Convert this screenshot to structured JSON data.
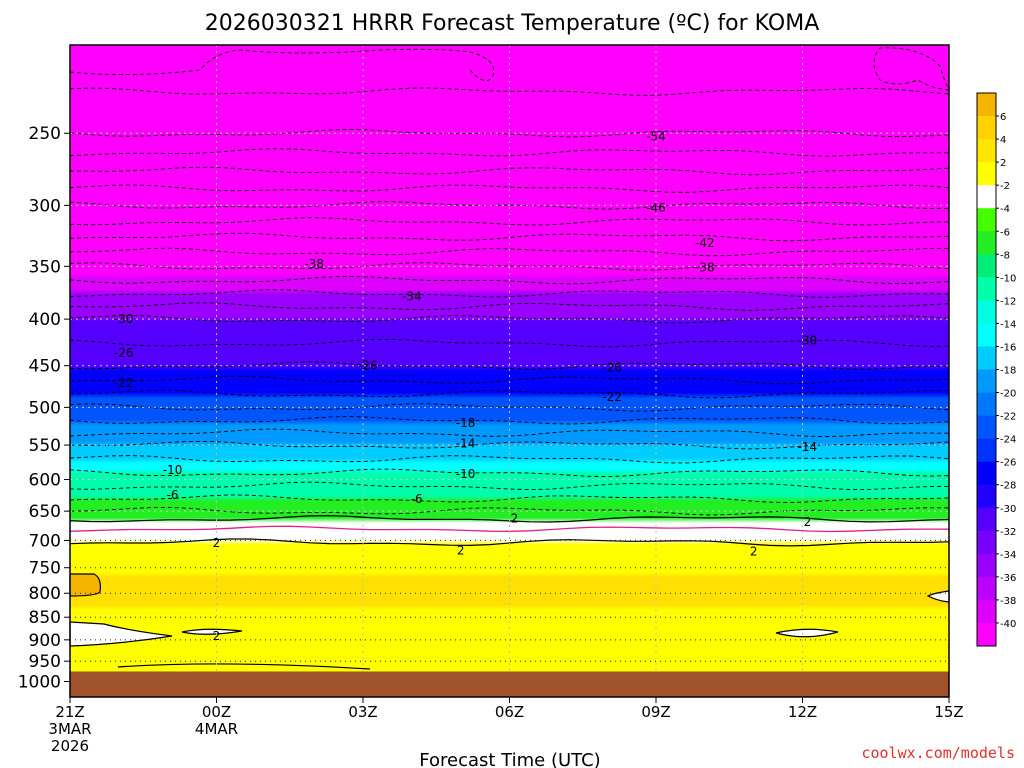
{
  "chart_data": {
    "type": "heatmap",
    "title": "2026030321 HRRR Forecast Temperature (ºC) for KOMA",
    "xlabel": "Forecast Time (UTC)",
    "credit": "coolwx.com/models",
    "x_ticks": [
      {
        "hour": 0,
        "lines": [
          "21Z",
          "3MAR",
          "2026"
        ]
      },
      {
        "hour": 3,
        "lines": [
          "00Z",
          "4MAR"
        ]
      },
      {
        "hour": 6,
        "lines": [
          "03Z"
        ]
      },
      {
        "hour": 9,
        "lines": [
          "06Z"
        ]
      },
      {
        "hour": 12,
        "lines": [
          "09Z"
        ]
      },
      {
        "hour": 15,
        "lines": [
          "12Z"
        ]
      },
      {
        "hour": 18,
        "lines": [
          "15Z"
        ]
      }
    ],
    "xlim": [
      0,
      18
    ],
    "y_ticks": [
      250,
      300,
      350,
      400,
      450,
      500,
      550,
      600,
      650,
      700,
      750,
      800,
      850,
      900,
      950,
      1000
    ],
    "ylim": [
      200,
      1040
    ],
    "y_scale": "log",
    "surface_pressure": 975,
    "temperature_profile": [
      {
        "p": 200,
        "t": -58
      },
      {
        "p": 250,
        "t": -54
      },
      {
        "p": 300,
        "t": -46
      },
      {
        "p": 350,
        "t": -38
      },
      {
        "p": 400,
        "t": -30
      },
      {
        "p": 450,
        "t": -26
      },
      {
        "p": 500,
        "t": -20
      },
      {
        "p": 550,
        "t": -14
      },
      {
        "p": 600,
        "t": -9
      },
      {
        "p": 650,
        "t": -4
      },
      {
        "p": 680,
        "t": 0
      },
      {
        "p": 700,
        "t": 2
      },
      {
        "p": 750,
        "t": 3.6
      },
      {
        "p": 800,
        "t": 4.4
      },
      {
        "p": 850,
        "t": 3.4
      },
      {
        "p": 900,
        "t": 2.3
      },
      {
        "p": 950,
        "t": 2.8
      },
      {
        "p": 975,
        "t": 2.6
      }
    ],
    "contour_labels": [
      {
        "text": "-54",
        "hour": 12.0,
        "p": 252
      },
      {
        "text": "-46",
        "hour": 12.0,
        "p": 302
      },
      {
        "text": "-42",
        "hour": 13.0,
        "p": 330
      },
      {
        "text": "-38",
        "hour": 5.0,
        "p": 348
      },
      {
        "text": "-38",
        "hour": 13.0,
        "p": 351
      },
      {
        "text": "-34",
        "hour": 7.0,
        "p": 378
      },
      {
        "text": "-30",
        "hour": 1.1,
        "p": 400
      },
      {
        "text": "-30",
        "hour": 15.1,
        "p": 422
      },
      {
        "text": "-26",
        "hour": 1.1,
        "p": 436
      },
      {
        "text": "-26",
        "hour": 6.1,
        "p": 450
      },
      {
        "text": "-26",
        "hour": 11.1,
        "p": 452
      },
      {
        "text": "-22",
        "hour": 1.1,
        "p": 470
      },
      {
        "text": "-22",
        "hour": 11.1,
        "p": 487
      },
      {
        "text": "-18",
        "hour": 8.1,
        "p": 520
      },
      {
        "text": "-14",
        "hour": 8.1,
        "p": 548
      },
      {
        "text": "-14",
        "hour": 15.1,
        "p": 553
      },
      {
        "text": "-10",
        "hour": 2.1,
        "p": 586
      },
      {
        "text": "-10",
        "hour": 8.1,
        "p": 592
      },
      {
        "text": "-6",
        "hour": 2.1,
        "p": 624
      },
      {
        "text": "-6",
        "hour": 7.1,
        "p": 630
      },
      {
        "text": "2",
        "hour": 9.1,
        "p": 662
      },
      {
        "text": "2",
        "hour": 15.1,
        "p": 668
      },
      {
        "text": "2",
        "hour": 3.0,
        "p": 705
      },
      {
        "text": "2",
        "hour": 8.0,
        "p": 718
      },
      {
        "text": "2",
        "hour": 14.0,
        "p": 720
      },
      {
        "text": "2",
        "hour": 3.0,
        "p": 891
      }
    ],
    "colorbar": {
      "levels": [
        "6",
        "4",
        "2",
        "-2",
        "-4",
        "-6",
        "-8",
        "-10",
        "-12",
        "-14",
        "-16",
        "-18",
        "-20",
        "-22",
        "-24",
        "-26",
        "-28",
        "-30",
        "-32",
        "-34",
        "-36",
        "-38",
        "-40"
      ],
      "colors": [
        "#f5b400",
        "#ffd200",
        "#ffe600",
        "#ffff00",
        "#ffffff",
        "#44ff00",
        "#22ee22",
        "#00ee77",
        "#00ffaa",
        "#00ffe0",
        "#00ffff",
        "#00ccff",
        "#0099ff",
        "#0077ff",
        "#0055ff",
        "#0033ff",
        "#0000ff",
        "#2200ff",
        "#5500ff",
        "#7700ff",
        "#9900ff",
        "#bb00ff",
        "#dd00ff",
        "#ff00ff"
      ]
    },
    "fill_stops": [
      {
        "t": -56,
        "c": "#ff00ff"
      },
      {
        "t": -40,
        "c": "#ff00ff"
      },
      {
        "t": -37,
        "c": "#dd00ff"
      },
      {
        "t": -34,
        "c": "#9900ff"
      },
      {
        "t": -30,
        "c": "#5500ff"
      },
      {
        "t": -26,
        "c": "#0000ff"
      },
      {
        "t": -22,
        "c": "#0055ff"
      },
      {
        "t": -18,
        "c": "#0099ff"
      },
      {
        "t": -14,
        "c": "#00ccff"
      },
      {
        "t": -12,
        "c": "#00ffff"
      },
      {
        "t": -10,
        "c": "#00ffaa"
      },
      {
        "t": -6,
        "c": "#22ee22"
      },
      {
        "t": -2.5,
        "c": "#44ff00"
      },
      {
        "t": -2,
        "c": "#ffffff"
      },
      {
        "t": 1.8,
        "c": "#ffffff"
      },
      {
        "t": 2,
        "c": "#ffff00"
      },
      {
        "t": 3,
        "c": "#ffff00"
      },
      {
        "t": 3.8,
        "c": "#ffe000"
      },
      {
        "t": 4.4,
        "c": "#ffd700"
      }
    ],
    "colors": {
      "ground": "#a0522d",
      "freezing_line": "#e0208a",
      "frame": "#000000"
    }
  }
}
